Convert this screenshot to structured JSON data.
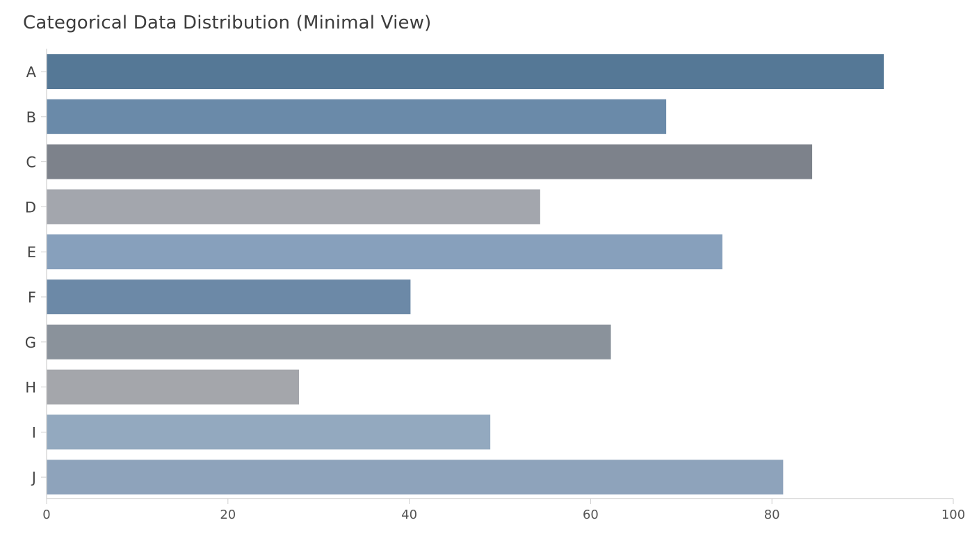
{
  "chart_data": {
    "type": "bar",
    "orientation": "horizontal",
    "title": "Categorical Data Distribution (Minimal View)",
    "xlabel": "",
    "ylabel": "",
    "categories": [
      "A",
      "B",
      "C",
      "D",
      "E",
      "F",
      "G",
      "H",
      "I",
      "J"
    ],
    "values": [
      92.3,
      68.3,
      84.4,
      54.4,
      74.5,
      40.1,
      62.2,
      27.8,
      48.9,
      81.2
    ],
    "colors": [
      "#557896",
      "#6a8aa9",
      "#7d828b",
      "#a3a6ad",
      "#87a0bc",
      "#6c89a7",
      "#8a929b",
      "#a4a6ab",
      "#93a9bf",
      "#8ea3bb"
    ],
    "xlim": [
      0,
      100
    ],
    "xticks": [
      "0",
      "20",
      "40",
      "60",
      "80",
      "100"
    ],
    "grid": false,
    "legend": "none"
  }
}
